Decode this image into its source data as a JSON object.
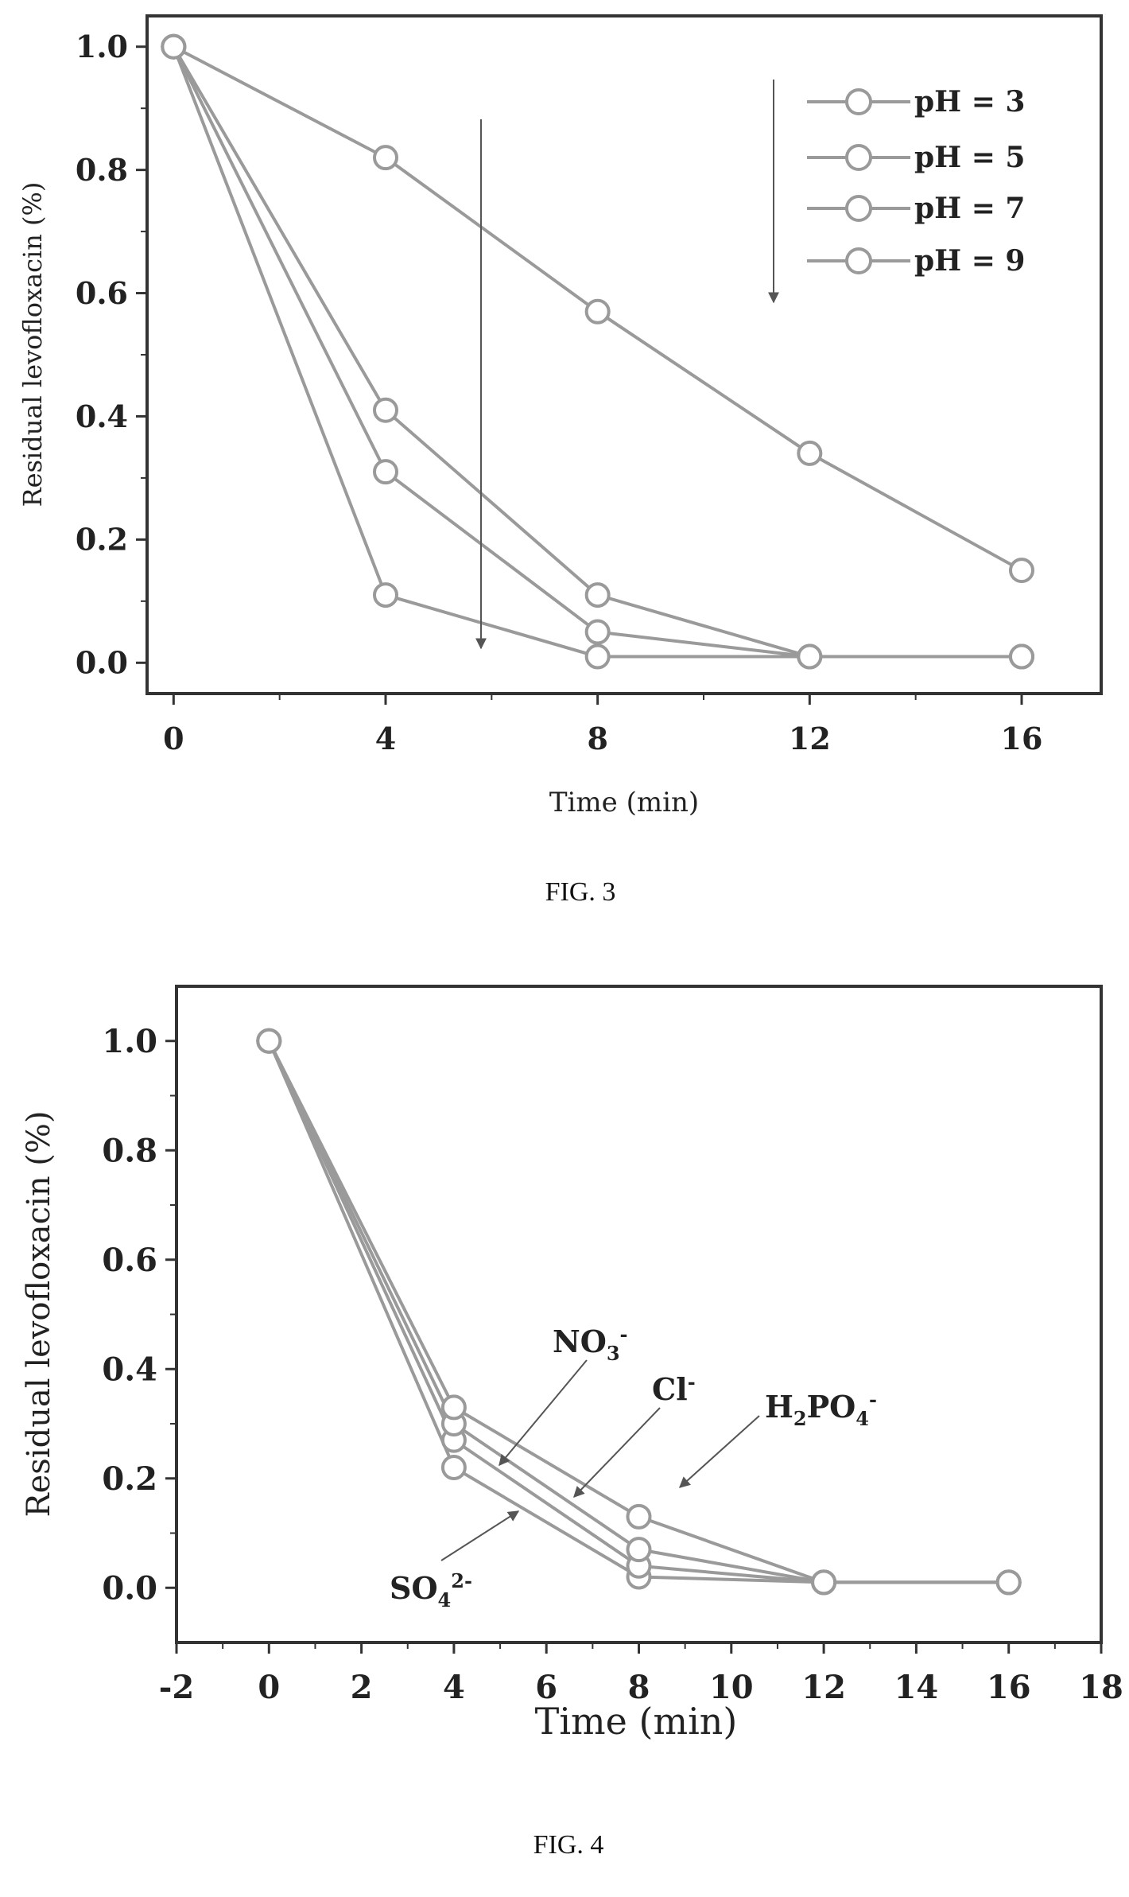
{
  "figures": [
    {
      "caption": "FIG. 3"
    },
    {
      "caption": "FIG. 4"
    }
  ],
  "chart_data": [
    {
      "type": "line",
      "figure": "FIG. 3",
      "xlabel": "Time (min)",
      "ylabel": "Residual levofloxacin (%)",
      "xlim": [
        -0.5,
        17.5
      ],
      "ylim": [
        -0.05,
        1.05
      ],
      "xticks": [
        0,
        4,
        8,
        12,
        16
      ],
      "yticks": [
        0.0,
        0.2,
        0.4,
        0.6,
        0.8,
        1.0
      ],
      "x": [
        0,
        4,
        8,
        12,
        16
      ],
      "series": [
        {
          "name": "pH = 3",
          "values": [
            1.0,
            0.11,
            0.01,
            0.01,
            0.01
          ]
        },
        {
          "name": "pH = 5",
          "values": [
            1.0,
            0.31,
            0.05,
            0.01,
            0.01
          ]
        },
        {
          "name": "pH = 7",
          "values": [
            1.0,
            0.41,
            0.11,
            0.01,
            0.01
          ]
        },
        {
          "name": "pH = 9",
          "values": [
            1.0,
            0.82,
            0.57,
            0.34,
            0.15
          ]
        }
      ],
      "legend_position": "top-right",
      "annotations": [
        "downward arrow across curves",
        "downward arrow beside legend"
      ],
      "series_color": "#9a9a9a",
      "grid": false
    },
    {
      "type": "line",
      "figure": "FIG. 4",
      "xlabel": "Time (min)",
      "ylabel": "Residual levofloxacin (%)",
      "xlim": [
        -2,
        18
      ],
      "ylim": [
        -0.1,
        1.1
      ],
      "xticks": [
        -2,
        0,
        2,
        4,
        6,
        8,
        10,
        12,
        14,
        16,
        18
      ],
      "yticks": [
        0.0,
        0.2,
        0.4,
        0.6,
        0.8,
        1.0
      ],
      "x": [
        0,
        4,
        8,
        12,
        16
      ],
      "series": [
        {
          "name": "SO4 2-",
          "values": [
            1.0,
            0.22,
            0.02,
            0.01,
            0.01
          ]
        },
        {
          "name": "NO3 -",
          "values": [
            1.0,
            0.27,
            0.04,
            0.01,
            0.01
          ]
        },
        {
          "name": "Cl -",
          "values": [
            1.0,
            0.3,
            0.07,
            0.01,
            0.01
          ]
        },
        {
          "name": "H2PO4 -",
          "values": [
            1.0,
            0.33,
            0.13,
            0.01,
            0.01
          ]
        }
      ],
      "annotations": [
        {
          "base": "NO",
          "sub": "3",
          "sup": "-"
        },
        {
          "base": "Cl",
          "sub": "",
          "sup": "-"
        },
        {
          "base": "H",
          "sub": "2",
          "mid": "PO",
          "sub2": "4",
          "sup": "-"
        },
        {
          "base": "SO",
          "sub": "4",
          "sup": "2-"
        }
      ],
      "series_color": "#9a9a9a",
      "grid": false
    }
  ]
}
